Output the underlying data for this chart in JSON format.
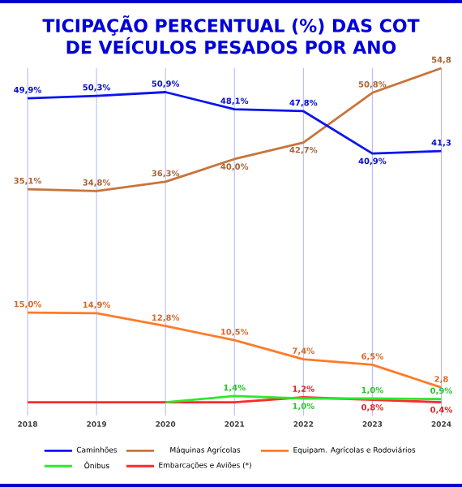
{
  "chart_data": {
    "type": "line",
    "title": "TICIPAÇÃO PERCENTUAL (%)  DAS COT",
    "subtitle": "DE VEÍCULOS PESADOS POR ANO",
    "categories": [
      "2018",
      "2019",
      "2020",
      "2021",
      "2022",
      "2023",
      "2024"
    ],
    "tick_labels": "x",
    "grid": "x",
    "legend": "bottom",
    "marker": "none",
    "line_style": "solid",
    "series": [
      {
        "name": "Caminhões",
        "color": "#0a14f0",
        "values": [
          49.9,
          50.3,
          50.9,
          48.1,
          47.8,
          40.9,
          41.3
        ],
        "value_labels": [
          "49,9%",
          "50,3%",
          "50,9%",
          "48,1%",
          "47,8%",
          "40,9%",
          "41,3"
        ]
      },
      {
        "name": "Máquinas Agrícolas",
        "color": "#c8743c",
        "values": [
          35.1,
          34.8,
          36.3,
          40.0,
          42.7,
          50.8,
          54.8
        ],
        "value_labels": [
          "35,1%",
          "34,8%",
          "36,3%",
          "40,0%",
          "42,7%",
          "50,8%",
          "54,8"
        ]
      },
      {
        "name": "Equipam. Agrícolas e Rodoviários",
        "color": "#ff7a2a",
        "values": [
          15.0,
          14.9,
          12.8,
          10.5,
          7.4,
          6.5,
          2.8
        ],
        "value_labels": [
          "15,0%",
          "14,9%",
          "12,8%",
          "10,5%",
          "7,4%",
          "6,5%",
          "2,8"
        ]
      },
      {
        "name": "Ônibus",
        "color": "#2ee82e",
        "values": [
          null,
          null,
          0.4,
          1.4,
          1.0,
          1.0,
          0.9
        ],
        "value_labels": [
          null,
          null,
          null,
          "1,4%",
          "1,0%",
          "1,0%",
          "0,9%"
        ]
      },
      {
        "name": "Embarcações e Aviões (*)",
        "color": "#ff2a2a",
        "values": [
          0.4,
          0.4,
          0.4,
          0.4,
          1.2,
          0.8,
          0.4
        ],
        "value_labels": [
          null,
          null,
          null,
          null,
          "1,2%",
          "0,8%",
          "0,4%"
        ]
      }
    ]
  }
}
